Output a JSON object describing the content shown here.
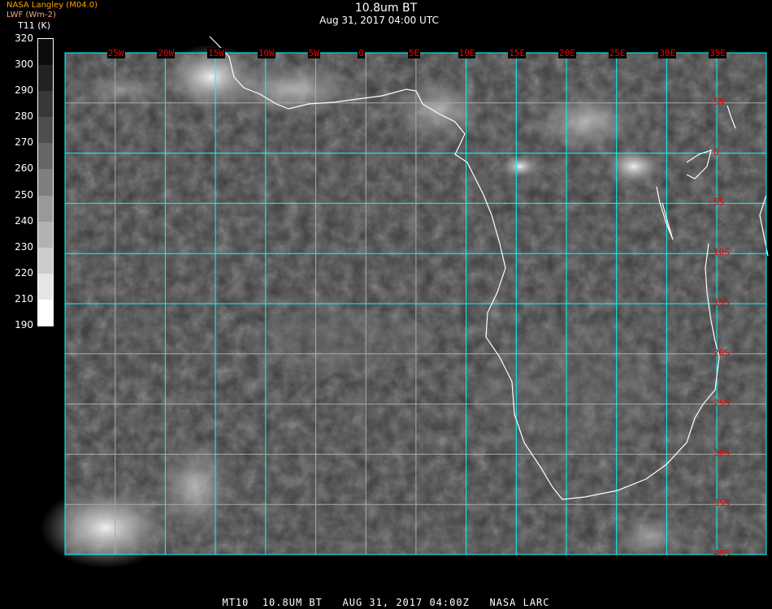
{
  "title": "10.8um BT",
  "subtitle": "Aug 31, 2017 04:00 UTC",
  "org_label": "NASA Langley (M04.0)",
  "units_label": "LWF (Wm-2)",
  "colorbar": {
    "title_line1": "T11",
    "title_line2": "(K)",
    "ticks": [
      "320",
      "300",
      "290",
      "280",
      "270",
      "260",
      "250",
      "240",
      "230",
      "220",
      "210",
      "190"
    ],
    "colors": [
      "#0c0c0c",
      "#222222",
      "#383838",
      "#4e4e4e",
      "#666666",
      "#7f7f7f",
      "#999999",
      "#b2b2b2",
      "#cccccc",
      "#e5e5e5",
      "#ffffff"
    ]
  },
  "map": {
    "longitude_labels": [
      "25W",
      "20W",
      "15W",
      "10W",
      "5W",
      "0",
      "5E",
      "10E",
      "15E",
      "20E",
      "25E",
      "30E",
      "35E"
    ],
    "latitude_labels": [
      "5N",
      "0",
      "5S",
      "10S",
      "15S",
      "20S",
      "25S",
      "30S",
      "35S",
      "40S"
    ],
    "grid_color": "#00ffff",
    "label_color": "#ee0000",
    "coastline_color": "#ffffff"
  },
  "footer": "MT10  10.8UM BT   AUG 31, 2017 04:00Z   NASA LARC"
}
